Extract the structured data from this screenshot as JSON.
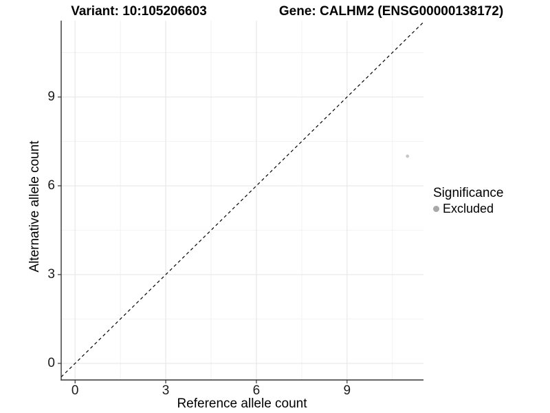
{
  "colors": {
    "background": "#ffffff",
    "grid_major": "#e7e7e7",
    "grid_minor": "#f2f2f2",
    "axis_line": "#333333",
    "tick_mark": "#333333",
    "identity_line": "#000000",
    "point": "#c7c7c7",
    "legend_key": "#a8a8a8",
    "text": "#000000"
  },
  "chart_data": {
    "type": "scatter",
    "title_left": "Variant: 10:105206603",
    "title_right": "Gene: CALHM2 (ENSG00000138172)",
    "xlabel": "Reference allele count",
    "ylabel": "Alternative allele count",
    "x_ticks": [
      0,
      3,
      6,
      9
    ],
    "y_ticks": [
      0,
      3,
      6,
      9
    ],
    "x_minor_ticks": [
      1.5,
      4.5,
      7.5,
      10.5
    ],
    "y_minor_ticks": [
      1.5,
      4.5,
      7.5,
      10.5
    ],
    "xlim": [
      -0.46,
      11.53
    ],
    "ylim": [
      -0.56,
      11.58
    ],
    "grid": true,
    "identity_line": {
      "style": "dashed",
      "from": [
        -0.46,
        -0.46
      ],
      "to": [
        11.53,
        11.53
      ]
    },
    "points": [
      {
        "x": 11,
        "y": 7,
        "significance": "Excluded"
      }
    ],
    "legend": {
      "position": "right",
      "title": "Significance",
      "items": [
        {
          "label": "Excluded"
        }
      ]
    }
  }
}
